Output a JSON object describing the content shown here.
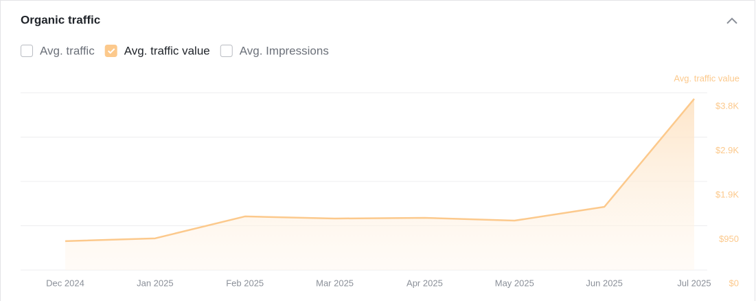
{
  "title": "Organic traffic",
  "toggles": [
    {
      "label": "Avg. traffic",
      "checked": false
    },
    {
      "label": "Avg. traffic value",
      "checked": true
    },
    {
      "label": "Avg. Impressions",
      "checked": false
    }
  ],
  "chart_data": {
    "type": "area",
    "categories": [
      "Dec 2024",
      "Jan 2025",
      "Feb 2025",
      "Mar 2025",
      "Apr 2025",
      "May 2025",
      "Jun 2025",
      "Jul 2025"
    ],
    "series": [
      {
        "name": "Avg. traffic value",
        "color": "#fcc98c",
        "values": [
          620,
          680,
          1150,
          1105,
          1120,
          1060,
          1355,
          3670
        ]
      }
    ],
    "ylim": [
      0,
      3800
    ],
    "yticks": [
      {
        "value": 0,
        "label": "$0"
      },
      {
        "value": 950,
        "label": "$950"
      },
      {
        "value": 1900,
        "label": "$1.9K"
      },
      {
        "value": 2850,
        "label": "$2.9K"
      },
      {
        "value": 3800,
        "label": "$3.8K"
      }
    ],
    "grid": true
  }
}
